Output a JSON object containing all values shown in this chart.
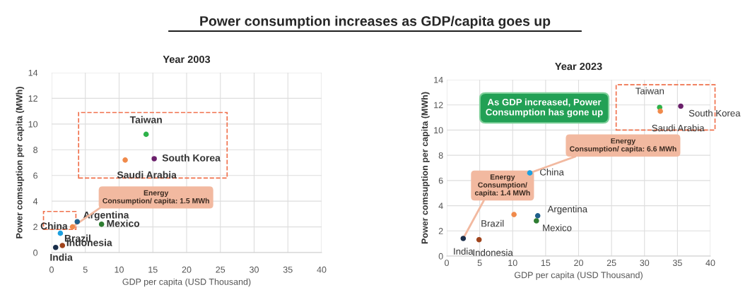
{
  "chart_data": [
    {
      "type": "scatter",
      "title": "Year 2003",
      "xlabel": "GDP per capita (USD Thousand)",
      "ylabel": "Power comsuption per capita (MWh)",
      "xlim": [
        0,
        40
      ],
      "xticks": [
        0,
        5,
        10,
        15,
        20,
        25,
        30,
        35,
        40
      ],
      "ylim": [
        0,
        14
      ],
      "yticks": [
        0,
        2,
        4,
        6,
        8,
        10,
        12,
        14
      ],
      "grid": true,
      "legend": false,
      "marker": "circle",
      "series": [
        {
          "name": "Taiwan",
          "color": "#2eb24a",
          "x": [
            14.0
          ],
          "values": [
            9.2
          ]
        },
        {
          "name": "Saudi Arabia",
          "color": "#f08a4b",
          "x": [
            10.9
          ],
          "values": [
            7.2
          ]
        },
        {
          "name": "South Korea",
          "color": "#6a1f6b",
          "x": [
            15.2
          ],
          "values": [
            7.3
          ]
        },
        {
          "name": "China",
          "color": "#f08a4b",
          "x": [
            3.1
          ],
          "values": [
            2.0
          ]
        },
        {
          "name": "Argentina",
          "color": "#1f5f8b",
          "x": [
            3.8
          ],
          "values": [
            2.4
          ]
        },
        {
          "name": "Mexico",
          "color": "#2e7d32",
          "x": [
            7.4
          ],
          "values": [
            2.2
          ]
        },
        {
          "name": "Brazil",
          "color": "#1ca0e0",
          "x": [
            1.3
          ],
          "values": [
            1.5
          ]
        },
        {
          "name": "Indonesia",
          "color": "#a0441c",
          "x": [
            1.6
          ],
          "values": [
            0.55
          ]
        },
        {
          "name": "India",
          "color": "#1a2e4a",
          "x": [
            0.6
          ],
          "values": [
            0.4
          ]
        }
      ],
      "annotations": [
        "Power consumption increases as GDP/capita goes up",
        {
          "text": "Energy\nConsumption/ capita: 1.5 MWh",
          "x": 3.1,
          "y": 2.0
        }
      ]
    },
    {
      "type": "scatter",
      "title": "Year 2023",
      "xlabel": "GDP per capita (USD Thousand)",
      "ylabel": "Power comsuption per capita (MWh)",
      "xlim": [
        0,
        40
      ],
      "xticks": [
        0,
        5,
        10,
        15,
        20,
        25,
        30,
        35,
        40
      ],
      "ylim": [
        0,
        14
      ],
      "yticks": [
        0,
        2,
        4,
        6,
        8,
        10,
        12,
        14
      ],
      "grid": true,
      "legend": false,
      "marker": "circle",
      "series": [
        {
          "name": "Taiwan",
          "color": "#2eb24a",
          "x": [
            32.3
          ],
          "values": [
            11.8
          ]
        },
        {
          "name": "Saudi Arabia",
          "color": "#f08a4b",
          "x": [
            32.4
          ],
          "values": [
            11.5
          ]
        },
        {
          "name": "South Korea",
          "color": "#6a1f6b",
          "x": [
            35.5
          ],
          "values": [
            11.9
          ]
        },
        {
          "name": "China",
          "color": "#1ca0e0",
          "x": [
            12.6
          ],
          "values": [
            6.6
          ]
        },
        {
          "name": "Brazil",
          "color": "#f08a4b",
          "x": [
            10.2
          ],
          "values": [
            3.3
          ]
        },
        {
          "name": "Argentina",
          "color": "#1f5f8b",
          "x": [
            13.8
          ],
          "values": [
            3.2
          ]
        },
        {
          "name": "Mexico",
          "color": "#2e7d32",
          "x": [
            13.6
          ],
          "values": [
            2.8
          ]
        },
        {
          "name": "India",
          "color": "#1a2e4a",
          "x": [
            2.5
          ],
          "values": [
            1.4
          ]
        },
        {
          "name": "Indonesia",
          "color": "#a0441c",
          "x": [
            4.9
          ],
          "values": [
            1.3
          ]
        }
      ],
      "annotations": [
        "As GDP increased, Power\nConsumption has gone up",
        {
          "text": "Energy\nConsumption/ capita: 6.6 MWh",
          "x": 12.6,
          "y": 6.6
        },
        {
          "text": "Energy\nConsumption/\ncapita: 1.4 MWh",
          "x": 2.5,
          "y": 1.4
        }
      ]
    }
  ]
}
